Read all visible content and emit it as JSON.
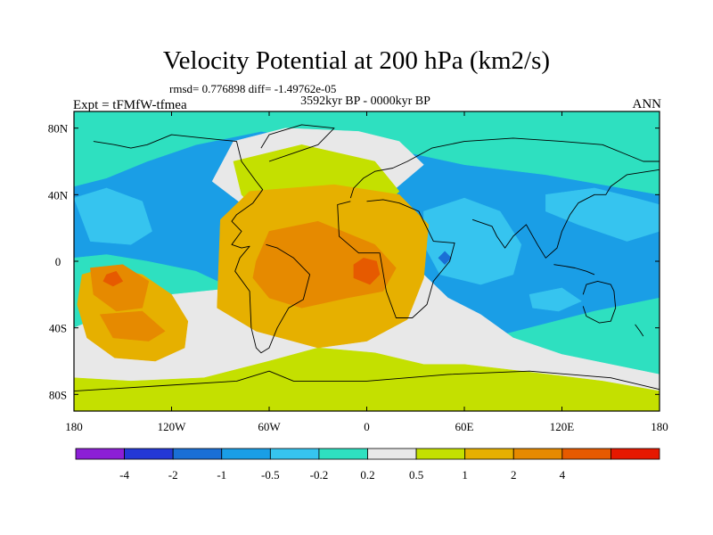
{
  "chart_data": {
    "type": "heatmap",
    "title": "Velocity Potential at 200 hPa (km2/s)",
    "stats_line": "rmsd= 0.776898 diff= -1.49762e-05",
    "experiment": "Expt = tFMfW-tfmea",
    "period": "3592kyr BP - 0000kyr BP",
    "season": "ANN",
    "x_range": [
      180,
      540
    ],
    "y_range": [
      -90,
      90
    ],
    "x_ticks": [
      {
        "value": 180,
        "label": "180"
      },
      {
        "value": 240,
        "label": "120W"
      },
      {
        "value": 300,
        "label": "60W"
      },
      {
        "value": 360,
        "label": "0"
      },
      {
        "value": 420,
        "label": "60E"
      },
      {
        "value": 480,
        "label": "120E"
      },
      {
        "value": 540,
        "label": "180"
      }
    ],
    "y_ticks": [
      {
        "value": 80,
        "label": "80N"
      },
      {
        "value": 40,
        "label": "40N"
      },
      {
        "value": 0,
        "label": "0"
      },
      {
        "value": -40,
        "label": "40S"
      },
      {
        "value": -80,
        "label": "80S"
      }
    ],
    "colorbar": {
      "colors": [
        "#8c1fd6",
        "#2438d6",
        "#1a6fd6",
        "#1a9ee6",
        "#36c4ef",
        "#2ee0c0",
        "#e8e8e8",
        "#c4e000",
        "#e6b000",
        "#e68a00",
        "#e65a00",
        "#e61800"
      ],
      "labels": [
        "-4",
        "-2",
        "-1",
        "-0.5",
        "-0.2",
        "0.2",
        "0.5",
        "1",
        "2",
        "4"
      ]
    },
    "regions": [
      {
        "level": 3,
        "points": [
          [
            180,
            90
          ],
          [
            540,
            90
          ],
          [
            540,
            -90
          ],
          [
            180,
            -90
          ]
        ]
      },
      {
        "level": 5,
        "points": [
          [
            180,
            90
          ],
          [
            540,
            90
          ],
          [
            540,
            40
          ],
          [
            470,
            52
          ],
          [
            420,
            58
          ],
          [
            382,
            66
          ],
          [
            330,
            74
          ],
          [
            295,
            78
          ],
          [
            255,
            70
          ],
          [
            225,
            60
          ],
          [
            200,
            50
          ],
          [
            180,
            45
          ]
        ]
      },
      {
        "level": 5,
        "points": [
          [
            180,
            2
          ],
          [
            200,
            4
          ],
          [
            225,
            0
          ],
          [
            255,
            -6
          ],
          [
            290,
            -22
          ],
          [
            335,
            -55
          ],
          [
            380,
            -60
          ],
          [
            420,
            -50
          ],
          [
            460,
            -40
          ],
          [
            500,
            -30
          ],
          [
            540,
            -22
          ],
          [
            540,
            -90
          ],
          [
            180,
            -90
          ]
        ]
      },
      {
        "level": 4,
        "points": [
          [
            180,
            38
          ],
          [
            200,
            44
          ],
          [
            222,
            36
          ],
          [
            228,
            18
          ],
          [
            215,
            10
          ],
          [
            190,
            12
          ]
        ]
      },
      {
        "level": 4,
        "points": [
          [
            395,
            30
          ],
          [
            420,
            38
          ],
          [
            442,
            30
          ],
          [
            455,
            10
          ],
          [
            450,
            -8
          ],
          [
            430,
            -14
          ],
          [
            405,
            -8
          ],
          [
            395,
            10
          ]
        ]
      },
      {
        "level": 4,
        "points": [
          [
            470,
            40
          ],
          [
            500,
            44
          ],
          [
            525,
            38
          ],
          [
            540,
            34
          ],
          [
            540,
            18
          ],
          [
            520,
            12
          ],
          [
            490,
            22
          ],
          [
            470,
            30
          ]
        ]
      },
      {
        "level": 4,
        "points": [
          [
            460,
            -20
          ],
          [
            480,
            -16
          ],
          [
            492,
            -24
          ],
          [
            478,
            -30
          ],
          [
            462,
            -28
          ]
        ]
      },
      {
        "level": 2,
        "points": [
          [
            404,
            2
          ],
          [
            408,
            6
          ],
          [
            412,
            2
          ],
          [
            408,
            -2
          ]
        ]
      },
      {
        "level": 6,
        "points": [
          [
            278,
            72
          ],
          [
            310,
            80
          ],
          [
            355,
            78
          ],
          [
            380,
            72
          ],
          [
            395,
            58
          ],
          [
            378,
            44
          ],
          [
            360,
            22
          ],
          [
            330,
            18
          ],
          [
            300,
            22
          ],
          [
            265,
            48
          ]
        ]
      },
      {
        "level": 6,
        "points": [
          [
            180,
            -40
          ],
          [
            200,
            -32
          ],
          [
            240,
            -20
          ],
          [
            280,
            -16
          ],
          [
            320,
            -12
          ],
          [
            360,
            -14
          ],
          [
            395,
            -8
          ],
          [
            410,
            -22
          ],
          [
            430,
            -32
          ],
          [
            450,
            -46
          ],
          [
            480,
            -56
          ],
          [
            540,
            -68
          ],
          [
            540,
            -90
          ],
          [
            180,
            -90
          ]
        ]
      },
      {
        "level": 7,
        "points": [
          [
            278,
            60
          ],
          [
            320,
            70
          ],
          [
            365,
            60
          ],
          [
            380,
            42
          ],
          [
            360,
            24
          ],
          [
            330,
            18
          ],
          [
            300,
            22
          ],
          [
            283,
            40
          ]
        ]
      },
      {
        "level": 7,
        "points": [
          [
            180,
            -70
          ],
          [
            215,
            -72
          ],
          [
            260,
            -70
          ],
          [
            300,
            -60
          ],
          [
            330,
            -52
          ],
          [
            365,
            -55
          ],
          [
            395,
            -62
          ],
          [
            420,
            -62
          ],
          [
            455,
            -66
          ],
          [
            505,
            -72
          ],
          [
            540,
            -78
          ],
          [
            540,
            -90
          ],
          [
            180,
            -90
          ]
        ]
      },
      {
        "level": 8,
        "points": [
          [
            270,
            25
          ],
          [
            288,
            42
          ],
          [
            340,
            46
          ],
          [
            380,
            40
          ],
          [
            398,
            22
          ],
          [
            395,
            -10
          ],
          [
            385,
            -35
          ],
          [
            360,
            -48
          ],
          [
            330,
            -52
          ],
          [
            292,
            -42
          ],
          [
            268,
            -28
          ]
        ]
      },
      {
        "level": 8,
        "points": [
          [
            185,
            -8
          ],
          [
            200,
            -4
          ],
          [
            222,
            -8
          ],
          [
            240,
            -20
          ],
          [
            250,
            -36
          ],
          [
            248,
            -52
          ],
          [
            230,
            -60
          ],
          [
            205,
            -58
          ],
          [
            188,
            -46
          ],
          [
            182,
            -26
          ]
        ]
      },
      {
        "level": 9,
        "points": [
          [
            292,
            0
          ],
          [
            300,
            18
          ],
          [
            330,
            24
          ],
          [
            365,
            10
          ],
          [
            378,
            -4
          ],
          [
            370,
            -18
          ],
          [
            348,
            -22
          ],
          [
            320,
            -28
          ],
          [
            300,
            -22
          ],
          [
            290,
            -10
          ]
        ]
      },
      {
        "level": 9,
        "points": [
          [
            190,
            -4
          ],
          [
            210,
            -2
          ],
          [
            226,
            -12
          ],
          [
            222,
            -28
          ],
          [
            206,
            -30
          ],
          [
            192,
            -20
          ]
        ]
      },
      {
        "level": 9,
        "points": [
          [
            196,
            -32
          ],
          [
            222,
            -30
          ],
          [
            236,
            -42
          ],
          [
            226,
            -48
          ],
          [
            204,
            -46
          ]
        ]
      },
      {
        "level": 10,
        "points": [
          [
            352,
            -2
          ],
          [
            358,
            2
          ],
          [
            366,
            0
          ],
          [
            368,
            -8
          ],
          [
            362,
            -14
          ],
          [
            352,
            -10
          ]
        ]
      },
      {
        "level": 10,
        "points": [
          [
            200,
            -8
          ],
          [
            206,
            -6
          ],
          [
            210,
            -12
          ],
          [
            204,
            -15
          ],
          [
            198,
            -12
          ]
        ]
      }
    ],
    "coastlines": [
      [
        [
          192,
          72
        ],
        [
          205,
          70
        ],
        [
          215,
          68
        ],
        [
          225,
          70
        ],
        [
          240,
          76
        ],
        [
          260,
          74
        ],
        [
          280,
          72
        ],
        [
          283,
          60
        ],
        [
          292,
          48
        ],
        [
          296,
          43
        ],
        [
          290,
          35
        ],
        [
          280,
          28
        ],
        [
          277,
          24
        ],
        [
          283,
          18
        ],
        [
          277,
          10
        ],
        [
          283,
          8
        ],
        [
          288,
          9
        ],
        [
          282,
          2
        ],
        [
          279,
          -6
        ],
        [
          288,
          -18
        ],
        [
          289,
          -40
        ],
        [
          292,
          -52
        ],
        [
          295,
          -55
        ],
        [
          300,
          -52
        ],
        [
          305,
          -40
        ],
        [
          312,
          -28
        ],
        [
          321,
          -23
        ],
        [
          325,
          -8
        ],
        [
          315,
          2
        ],
        [
          305,
          8
        ],
        [
          298,
          10
        ]
      ],
      [
        [
          300,
          60
        ],
        [
          315,
          65
        ],
        [
          330,
          70
        ],
        [
          340,
          80
        ],
        [
          320,
          82
        ],
        [
          300,
          76
        ],
        [
          295,
          68
        ]
      ],
      [
        [
          350,
          36
        ],
        [
          342,
          34
        ],
        [
          343,
          15
        ],
        [
          355,
          5
        ],
        [
          368,
          5
        ],
        [
          372,
          -18
        ],
        [
          378,
          -34
        ],
        [
          388,
          -34
        ],
        [
          397,
          -26
        ],
        [
          401,
          -12
        ],
        [
          411,
          0
        ],
        [
          414,
          11
        ],
        [
          401,
          12
        ],
        [
          392,
          30
        ],
        [
          380,
          35
        ],
        [
          370,
          37
        ],
        [
          360,
          36
        ]
      ],
      [
        [
          350,
          38
        ],
        [
          352,
          44
        ],
        [
          358,
          50
        ],
        [
          365,
          54
        ],
        [
          376,
          56
        ],
        [
          385,
          60
        ],
        [
          400,
          68
        ],
        [
          420,
          72
        ],
        [
          450,
          74
        ],
        [
          480,
          72
        ],
        [
          505,
          70
        ],
        [
          520,
          64
        ],
        [
          530,
          60
        ],
        [
          540,
          60
        ]
      ],
      [
        [
          425,
          25
        ],
        [
          437,
          21
        ],
        [
          440,
          15
        ],
        [
          445,
          8
        ],
        [
          450,
          15
        ],
        [
          458,
          22
        ],
        [
          465,
          10
        ],
        [
          470,
          2
        ],
        [
          477,
          8
        ],
        [
          480,
          18
        ],
        [
          485,
          28
        ],
        [
          490,
          35
        ],
        [
          500,
          40
        ],
        [
          507,
          40
        ],
        [
          510,
          45
        ],
        [
          520,
          52
        ],
        [
          540,
          55
        ]
      ],
      [
        [
          475,
          -2
        ],
        [
          482,
          -3
        ],
        [
          488,
          -4
        ],
        [
          495,
          -6
        ],
        [
          500,
          -8
        ]
      ],
      [
        [
          493,
          -20
        ],
        [
          495,
          -14
        ],
        [
          502,
          -12
        ],
        [
          510,
          -14
        ],
        [
          512,
          -18
        ],
        [
          513,
          -28
        ],
        [
          510,
          -36
        ],
        [
          503,
          -37
        ],
        [
          495,
          -33
        ],
        [
          493,
          -27
        ]
      ],
      [
        [
          525,
          -38
        ],
        [
          528,
          -42
        ],
        [
          530,
          -45
        ]
      ],
      [
        [
          180,
          -78
        ],
        [
          230,
          -75
        ],
        [
          280,
          -72
        ],
        [
          300,
          -66
        ],
        [
          315,
          -72
        ],
        [
          360,
          -72
        ],
        [
          410,
          -68
        ],
        [
          460,
          -66
        ],
        [
          510,
          -70
        ],
        [
          540,
          -77
        ]
      ]
    ]
  }
}
